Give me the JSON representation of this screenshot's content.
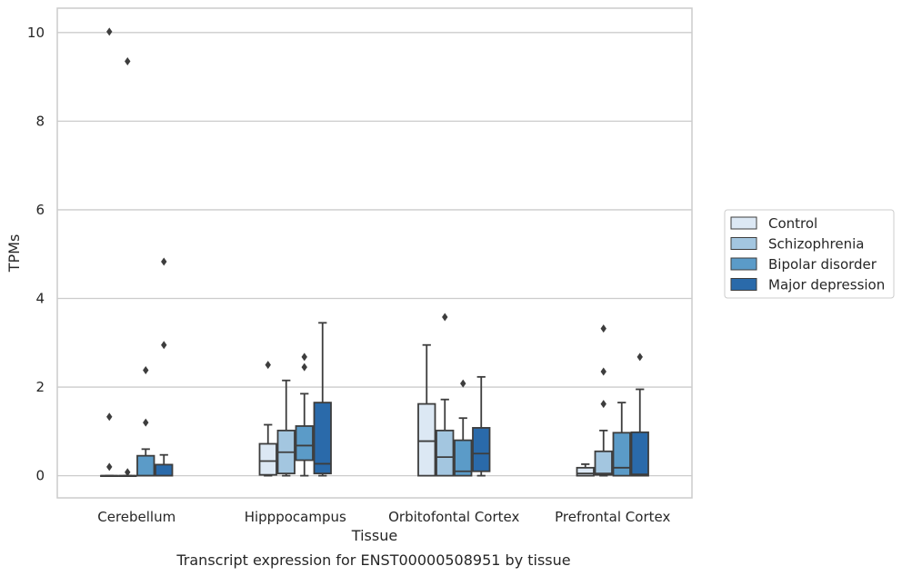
{
  "chart_data": {
    "type": "box",
    "title": "",
    "caption": "Transcript expression for ENST00000508951 by tissue",
    "xlabel": "Tissue",
    "ylabel": "TPMs",
    "ylim": [
      -0.5,
      10.55
    ],
    "yticks": [
      0,
      2,
      4,
      6,
      8,
      10
    ],
    "grid": "horizontal",
    "legend_position": "right",
    "categories": [
      "Cerebellum",
      "Hipppocampus",
      "Orbitofontal Cortex",
      "Prefrontal Cortex"
    ],
    "series": [
      {
        "name": "Control",
        "color": "#dce8f4",
        "boxes": [
          {
            "min": 0,
            "q1": 0,
            "median": 0,
            "q3": 0,
            "max": 0,
            "outliers": [
              10.02,
              1.33,
              0.2
            ]
          },
          {
            "min": 0,
            "q1": 0.02,
            "median": 0.33,
            "q3": 0.72,
            "max": 1.15,
            "outliers": [
              2.5
            ]
          },
          {
            "min": 0,
            "q1": 0,
            "median": 0.78,
            "q3": 1.62,
            "max": 2.95,
            "outliers": []
          },
          {
            "min": 0,
            "q1": 0,
            "median": 0.05,
            "q3": 0.18,
            "max": 0.26,
            "outliers": []
          }
        ]
      },
      {
        "name": "Schizophrenia",
        "color": "#a3c6e0",
        "boxes": [
          {
            "min": 0,
            "q1": 0,
            "median": 0,
            "q3": 0,
            "max": 0,
            "outliers": [
              9.35,
              0.08
            ]
          },
          {
            "min": 0,
            "q1": 0.05,
            "median": 0.53,
            "q3": 1.02,
            "max": 2.15,
            "outliers": []
          },
          {
            "min": 0,
            "q1": 0,
            "median": 0.42,
            "q3": 1.02,
            "max": 1.72,
            "outliers": [
              3.58
            ]
          },
          {
            "min": 0,
            "q1": 0.02,
            "median": 0.05,
            "q3": 0.55,
            "max": 1.02,
            "outliers": [
              3.32,
              2.35,
              1.62
            ]
          }
        ]
      },
      {
        "name": "Bipolar disorder",
        "color": "#5b9bc8",
        "boxes": [
          {
            "min": 0,
            "q1": 0,
            "median": 0,
            "q3": 0.45,
            "max": 0.6,
            "outliers": [
              2.38,
              1.2
            ]
          },
          {
            "min": 0,
            "q1": 0.35,
            "median": 0.68,
            "q3": 1.12,
            "max": 1.85,
            "outliers": [
              2.68,
              2.45
            ]
          },
          {
            "min": 0,
            "q1": 0,
            "median": 0.1,
            "q3": 0.8,
            "max": 1.3,
            "outliers": [
              2.08
            ]
          },
          {
            "min": 0,
            "q1": 0,
            "median": 0.18,
            "q3": 0.97,
            "max": 1.65,
            "outliers": []
          }
        ]
      },
      {
        "name": "Major depression",
        "color": "#2a6aaa",
        "boxes": [
          {
            "min": 0,
            "q1": 0,
            "median": 0,
            "q3": 0.25,
            "max": 0.47,
            "outliers": [
              4.83,
              2.95
            ]
          },
          {
            "min": 0,
            "q1": 0.05,
            "median": 0.27,
            "q3": 1.65,
            "max": 3.45,
            "outliers": []
          },
          {
            "min": 0,
            "q1": 0.1,
            "median": 0.5,
            "q3": 1.08,
            "max": 2.23,
            "outliers": []
          },
          {
            "min": 0,
            "q1": 0,
            "median": 0.03,
            "q3": 0.98,
            "max": 1.95,
            "outliers": [
              2.68
            ]
          }
        ]
      }
    ]
  }
}
